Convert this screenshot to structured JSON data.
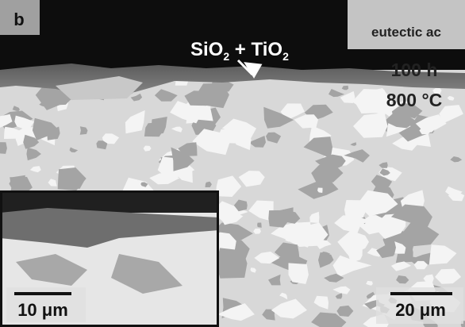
{
  "panel_label": "b",
  "annotation": {
    "segments": [
      "SiO",
      "2",
      " + TiO",
      "2"
    ]
  },
  "sample_label": "eutectic ac",
  "conditions": [
    "100 h",
    "800 °C"
  ],
  "inset_scale_bar": "10 μm",
  "scale_bar": "20 μm"
}
